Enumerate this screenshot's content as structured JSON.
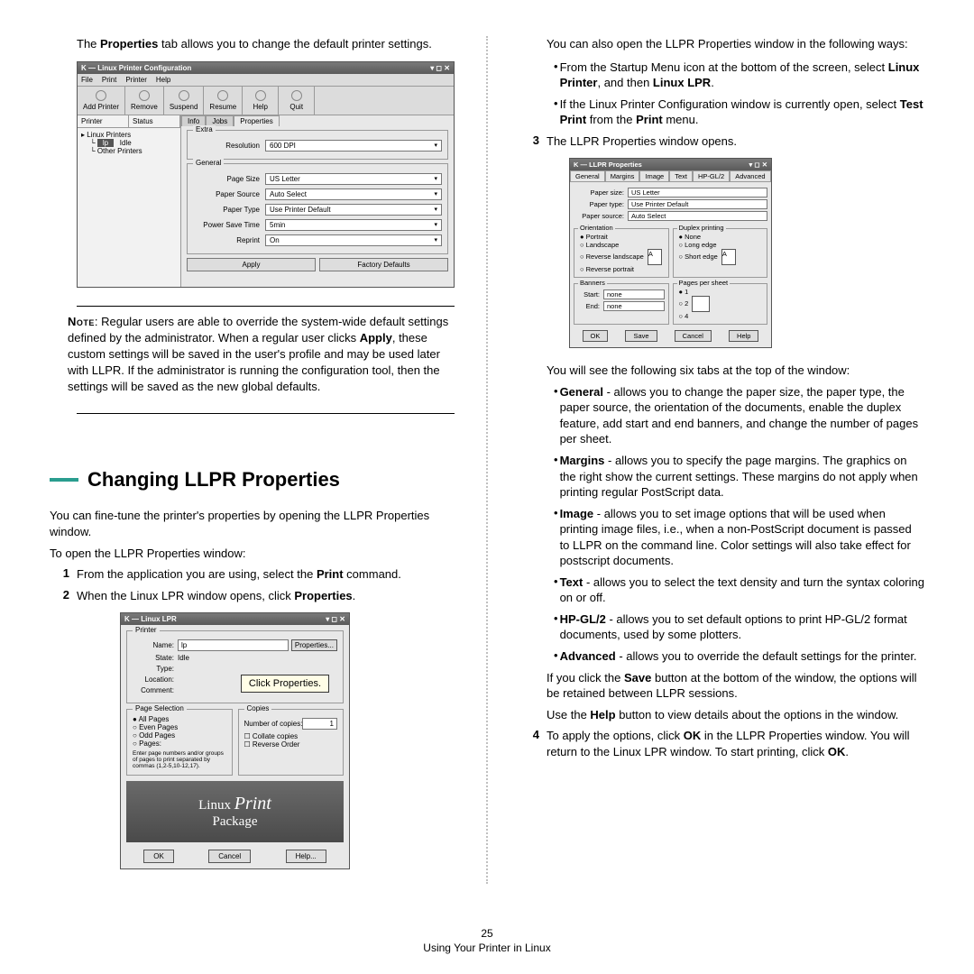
{
  "left": {
    "intro": "The <b>Properties</b> tab allows you to change the default printer settings.",
    "mock1": {
      "title": "Linux Printer Configuration",
      "menus": [
        "File",
        "Print",
        "Printer",
        "Help"
      ],
      "tools": [
        "Add Printer",
        "Remove",
        "Suspend",
        "Resume",
        "Help",
        "Quit"
      ],
      "tree_cols": [
        "Printer",
        "Status"
      ],
      "tree": {
        "root": "Linux Printers",
        "sel": "lp",
        "status": "Idle",
        "other": "Other Printers"
      },
      "tabs": [
        "Info",
        "Jobs",
        "Properties"
      ],
      "extra_label": "Extra",
      "extra": [
        [
          "Resolution",
          "600 DPI"
        ]
      ],
      "general_label": "General",
      "general": [
        [
          "Page Size",
          "US Letter"
        ],
        [
          "Paper Source",
          "Auto Select"
        ],
        [
          "Paper Type",
          "Use Printer Default"
        ],
        [
          "Power Save Time",
          "5min"
        ],
        [
          "Reprint",
          "On"
        ]
      ],
      "buttons": [
        "Apply",
        "Factory Defaults"
      ]
    },
    "note_label": "Note",
    "note": ": Regular users are able to override the system-wide default settings defined by the administrator. When a regular user clicks <b>Apply</b>, these custom settings will be saved in the user's profile and may be used later with LLPR. If the administrator is running the configuration tool, then the settings will be saved as the new global defaults.",
    "heading": "Changing LLPR Properties",
    "sub1": "You can fine-tune the printer's properties by opening the LLPR Properties window.",
    "sub2": "To open the LLPR Properties window:",
    "step1": "From the application you are using, select the <b>Print</b> command.",
    "step2": "When the Linux LPR window opens, click <b>Properties</b>.",
    "mock2": {
      "title": "Linux LPR",
      "printer_label": "Printer",
      "fields": {
        "name": "Name:",
        "name_v": "lp",
        "state": "State:",
        "state_v": "Idle",
        "type": "Type:",
        "location": "Location:",
        "comment": "Comment:"
      },
      "props_btn": "Properties...",
      "callout": "Click Properties.",
      "psel_label": "Page Selection",
      "psel": [
        "All Pages",
        "Even Pages",
        "Odd Pages",
        "Pages:"
      ],
      "psel_hint": "Enter page numbers and/or groups of pages to print separated by commas (1,2-5,10-12,17).",
      "copies_label": "Copies",
      "num_copies": "Number of copies:",
      "collate": "Collate copies",
      "reverse": "Reverse Order",
      "brand1": "Linux ",
      "brand2": "Print",
      "brand3": "Package",
      "buttons": [
        "OK",
        "Cancel",
        "Help..."
      ]
    }
  },
  "right": {
    "r1": "You can also open the LLPR Properties window in the following ways:",
    "b1": "From the Startup Menu icon at the bottom of the screen, select <b>Linux Printer</b>, and then <b>Linux LPR</b>.",
    "b2": "If the Linux Printer Configuration window is currently open, select <b>Test Print</b> from the <b>Print</b> menu.",
    "step3": "The LLPR Properties window opens.",
    "mock3": {
      "title": "LLPR Properties",
      "tabs": [
        "General",
        "Margins",
        "Image",
        "Text",
        "HP-GL/2",
        "Advanced"
      ],
      "rows": [
        [
          "Paper size:",
          "US Letter"
        ],
        [
          "Paper type:",
          "Use Printer Default"
        ],
        [
          "Paper source:",
          "Auto Select"
        ]
      ],
      "orient_label": "Orientation",
      "orient": [
        "Portrait",
        "Landscape",
        "Reverse landscape",
        "Reverse portrait"
      ],
      "duplex_label": "Duplex printing",
      "duplex": [
        "None",
        "Long edge",
        "Short edge"
      ],
      "banners_label": "Banners",
      "banners": [
        [
          "Start:",
          "none"
        ],
        [
          "End:",
          "none"
        ]
      ],
      "pps_label": "Pages per sheet",
      "pps": [
        "1",
        "2",
        "4"
      ],
      "buttons": [
        "OK",
        "Save",
        "Cancel",
        "Help"
      ]
    },
    "r2": "You will see the following six tabs at the top of the window:",
    "tabs_desc": [
      "<b>General</b> - allows you to change the paper size, the paper type, the paper source, the orientation of the documents, enable the duplex feature, add start and end banners, and change the number of pages per sheet.",
      "<b>Margins</b> - allows you to specify the page margins. The graphics on the right show the current settings. These margins do not apply when printing regular PostScript data.",
      "<b>Image</b> - allows you to set image options that will be used when printing image files, i.e., when a non-PostScript document is passed to LLPR on the command line. Color settings will also take effect for postscript documents.",
      "<b>Text</b> - allows you to select the text density and turn the syntax coloring on or off.",
      "<b>HP-GL/2</b> - allows you to set default options to print HP-GL/2 format documents, used by some plotters.",
      "<b>Advanced</b> - allows you to override the default settings for the printer."
    ],
    "r3": "If you click the <b>Save</b> button at the bottom of the window, the options will be retained between LLPR sessions.",
    "r4": "Use the <b>Help</b> button to view details about the options in the window.",
    "step4": "To apply the options, click <b>OK</b> in the LLPR Properties window. You will return to the Linux LPR window. To start printing, click <b>OK</b>."
  },
  "footer": {
    "page": "25",
    "section": "Using Your Printer in Linux"
  }
}
